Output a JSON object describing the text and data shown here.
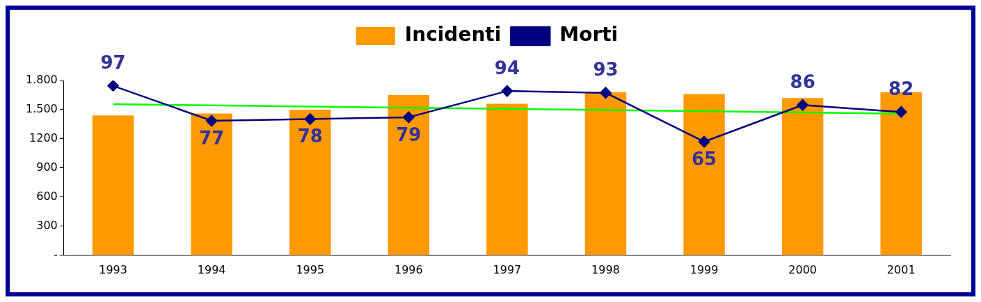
{
  "chart_data": {
    "type": "bar",
    "categories": [
      "1993",
      "1994",
      "1995",
      "1996",
      "1997",
      "1998",
      "1999",
      "2000",
      "2001"
    ],
    "series": [
      {
        "name": "Incidenti",
        "color": "#ff9900",
        "values": [
          1440,
          1460,
          1500,
          1650,
          1560,
          1680,
          1660,
          1620,
          1680
        ]
      },
      {
        "name": "Morti",
        "type": "line",
        "axis": "y2",
        "color": "#000080",
        "marker": "diamond",
        "values": [
          97,
          77,
          78,
          79,
          94,
          93,
          65,
          86,
          82
        ],
        "value_labels": [
          "97",
          "77",
          "78",
          "79",
          "94",
          "93",
          "65",
          "86",
          "82"
        ]
      },
      {
        "type": "line",
        "axis": "y2",
        "color": "#00ff00",
        "marker": "none",
        "values": [
          86.5,
          85.8,
          85.1,
          84.4,
          83.8,
          83.1,
          82.4,
          81.7,
          81.0
        ]
      }
    ],
    "ylim": [
      0,
      1800
    ],
    "yticks": [
      {
        "value": 0,
        "label": "-"
      },
      300,
      600,
      900,
      1200,
      {
        "value": 1500,
        "label": "1.500"
      },
      {
        "value": 1800,
        "label": "1.800"
      }
    ],
    "y2lim": [
      0,
      100
    ],
    "grid": false,
    "legend": "top"
  }
}
